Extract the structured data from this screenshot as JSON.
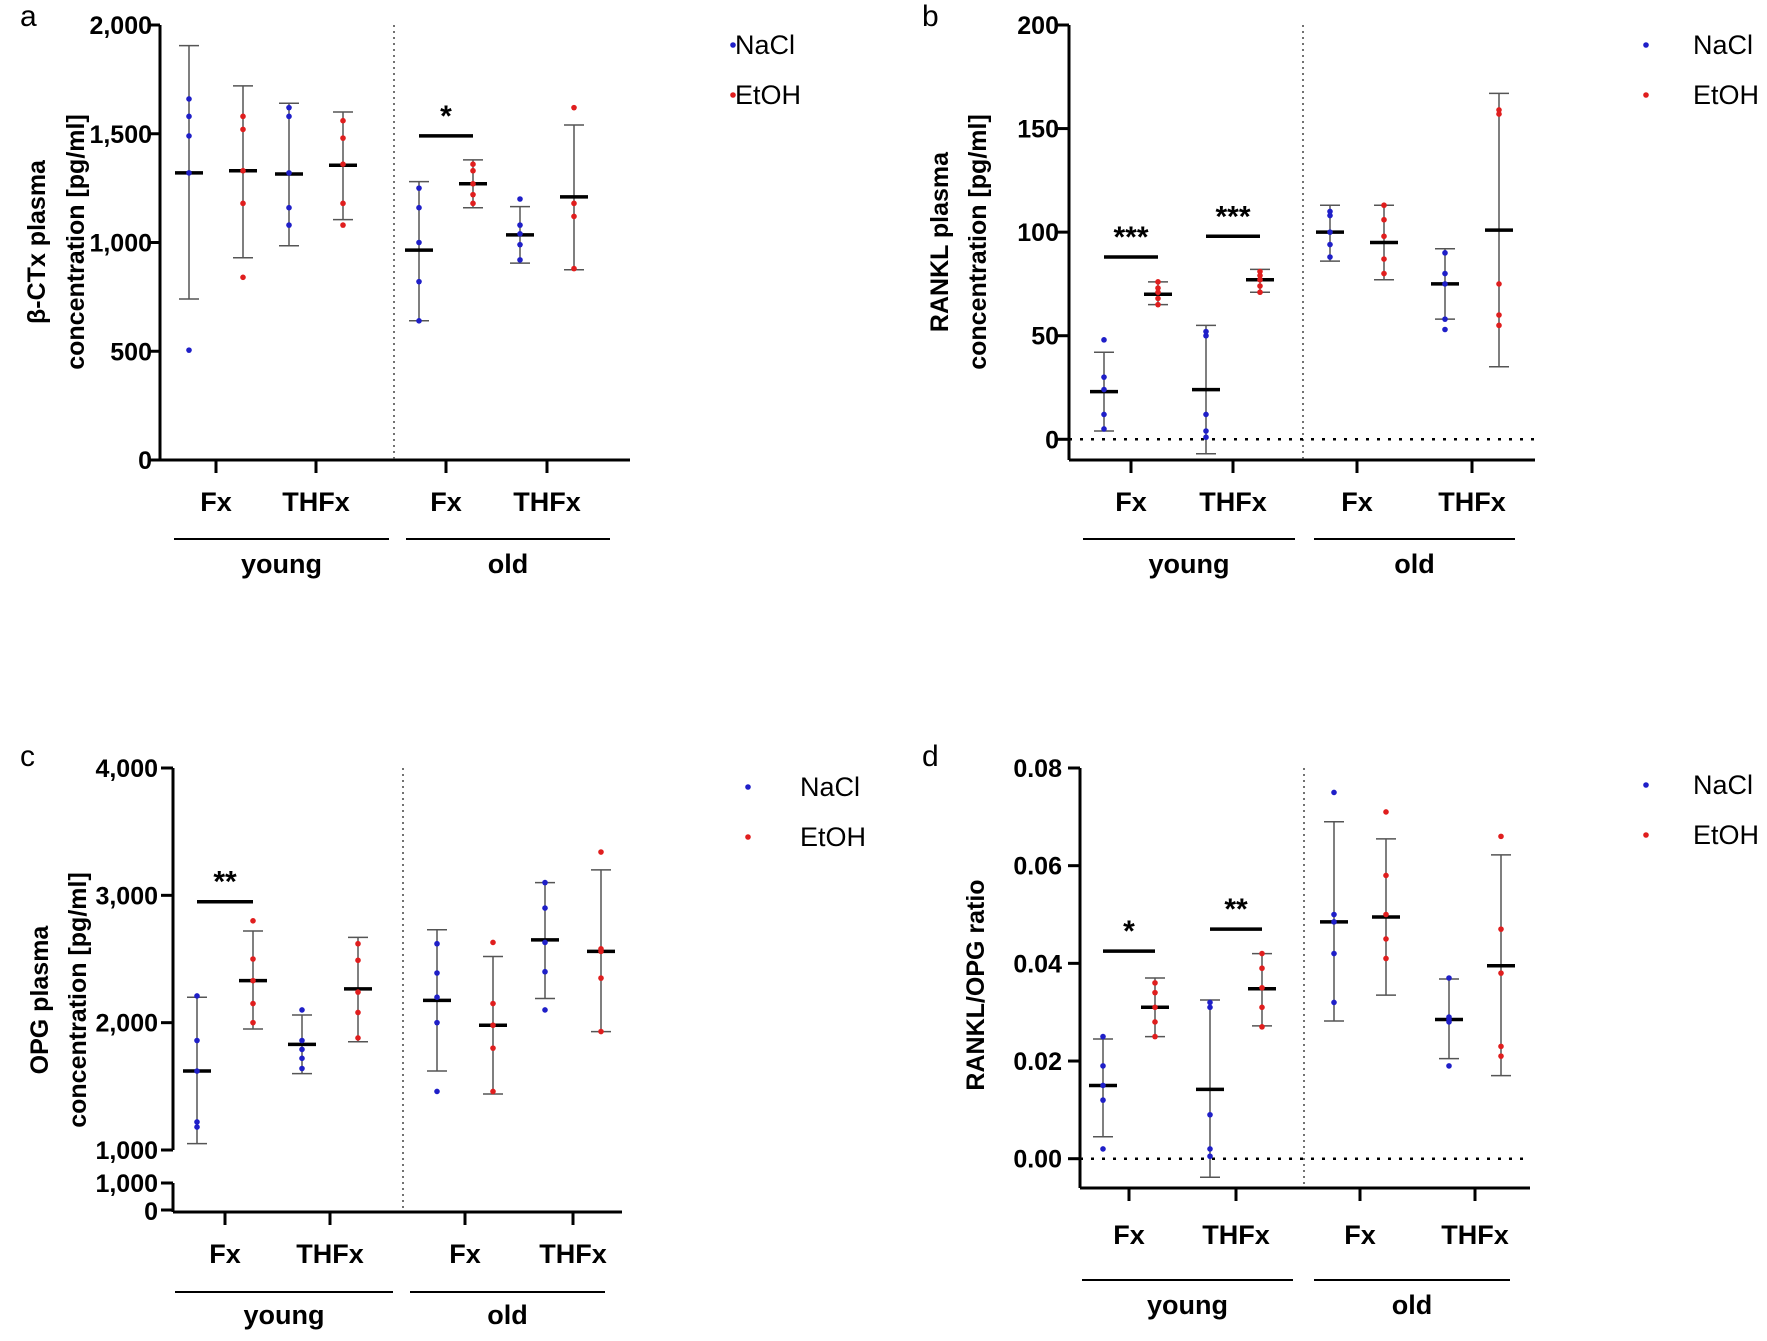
{
  "colors": {
    "nacl": "#1f1fc8",
    "etoh": "#e01e1e",
    "axis": "#000000",
    "errorbar": "#555555"
  },
  "chart_data": [
    {
      "type": "scatter",
      "panel": "a",
      "ylabel_lines": [
        "β-CTx plasma",
        "concentration [pg/ml]"
      ],
      "ylim": [
        0,
        2000
      ],
      "yticks": [
        0,
        500,
        1000,
        1500,
        2000
      ],
      "ytick_labels": [
        "0",
        "500",
        "1,000",
        "1,500",
        "2,000"
      ],
      "zero_line": false,
      "axis_break": false,
      "categories": [
        "Fx",
        "THFx",
        "Fx",
        "THFx"
      ],
      "groups": [
        {
          "label": "young",
          "categories": [
            0,
            1
          ]
        },
        {
          "label": "old",
          "categories": [
            2,
            3
          ]
        }
      ],
      "legend": [
        "NaCl",
        "EtOH"
      ],
      "series": [
        {
          "name": "NaCl",
          "groups": [
            {
              "mean": 1320,
              "low": 740,
              "high": 1905,
              "points": [
                505,
                1320,
                1490,
                1580,
                1660
              ]
            },
            {
              "mean": 1315,
              "low": 985,
              "high": 1640,
              "points": [
                1080,
                1160,
                1320,
                1580,
                1620
              ]
            },
            {
              "mean": 965,
              "low": 640,
              "high": 1280,
              "points": [
                640,
                820,
                1000,
                1160,
                1250
              ]
            },
            {
              "mean": 1035,
              "low": 905,
              "high": 1165,
              "points": [
                920,
                990,
                1040,
                1080,
                1200
              ]
            }
          ]
        },
        {
          "name": "EtOH",
          "groups": [
            {
              "mean": 1330,
              "low": 930,
              "high": 1720,
              "points": [
                840,
                1180,
                1330,
                1520,
                1580
              ]
            },
            {
              "mean": 1355,
              "low": 1105,
              "high": 1600,
              "points": [
                1080,
                1180,
                1360,
                1480,
                1560
              ]
            },
            {
              "mean": 1270,
              "low": 1160,
              "high": 1380,
              "points": [
                1180,
                1220,
                1270,
                1330,
                1360
              ]
            },
            {
              "mean": 1210,
              "low": 875,
              "high": 1540,
              "points": [
                880,
                1120,
                1180,
                1620
              ]
            }
          ]
        }
      ],
      "significance": [
        {
          "category": 2,
          "label": "*",
          "y": 1490
        }
      ]
    },
    {
      "type": "scatter",
      "panel": "b",
      "ylabel_lines": [
        "RANKL plasma",
        "concentration [pg/ml]"
      ],
      "ylim": [
        -10,
        200
      ],
      "yticks": [
        0,
        50,
        100,
        150,
        200
      ],
      "ytick_labels": [
        "0",
        "50",
        "100",
        "150",
        "200"
      ],
      "zero_line": true,
      "axis_break": false,
      "categories": [
        "Fx",
        "THFx",
        "Fx",
        "THFx"
      ],
      "groups": [
        {
          "label": "young",
          "categories": [
            0,
            1
          ]
        },
        {
          "label": "old",
          "categories": [
            2,
            3
          ]
        }
      ],
      "legend": [
        "NaCl",
        "EtOH"
      ],
      "series": [
        {
          "name": "NaCl",
          "groups": [
            {
              "mean": 23,
              "low": 4,
              "high": 42,
              "points": [
                5,
                12,
                24,
                30,
                48
              ]
            },
            {
              "mean": 24,
              "low": -7,
              "high": 55,
              "points": [
                1,
                4,
                12,
                50,
                52
              ]
            },
            {
              "mean": 100,
              "low": 86,
              "high": 113,
              "points": [
                88,
                94,
                100,
                108,
                110
              ]
            },
            {
              "mean": 75,
              "low": 58,
              "high": 92,
              "points": [
                53,
                58,
                75,
                80,
                90
              ]
            }
          ]
        },
        {
          "name": "EtOH",
          "groups": [
            {
              "mean": 70,
              "low": 65,
              "high": 76,
              "points": [
                65,
                68,
                71,
                73,
                76
              ]
            },
            {
              "mean": 77,
              "low": 71,
              "high": 82,
              "points": [
                71,
                74,
                77,
                79,
                81
              ]
            },
            {
              "mean": 95,
              "low": 77,
              "high": 113,
              "points": [
                80,
                87,
                98,
                106,
                113
              ]
            },
            {
              "mean": 101,
              "low": 35,
              "high": 167,
              "points": [
                55,
                60,
                75,
                157,
                159
              ]
            }
          ]
        }
      ],
      "significance": [
        {
          "category": 0,
          "label": "***",
          "y": 88
        },
        {
          "category": 1,
          "label": "***",
          "y": 98
        }
      ]
    },
    {
      "type": "scatter",
      "panel": "c",
      "ylabel_lines": [
        "OPG plasma",
        "concentration [pg/ml]"
      ],
      "ylim": [
        1000,
        4000
      ],
      "yticks": [
        1000,
        2000,
        3000,
        4000
      ],
      "ytick_labels": [
        "1,000",
        "2,000",
        "3,000",
        "4,000"
      ],
      "zero_line": false,
      "axis_break": true,
      "break_labels": [
        "1,000",
        "0"
      ],
      "categories": [
        "Fx",
        "THFx",
        "Fx",
        "THFx"
      ],
      "groups": [
        {
          "label": "young",
          "categories": [
            0,
            1
          ]
        },
        {
          "label": "old",
          "categories": [
            2,
            3
          ]
        }
      ],
      "legend": [
        "NaCl",
        "EtOH"
      ],
      "series": [
        {
          "name": "NaCl",
          "groups": [
            {
              "mean": 1620,
              "low": 1050,
              "high": 2200,
              "points": [
                1180,
                1220,
                1620,
                1860,
                2210
              ]
            },
            {
              "mean": 1830,
              "low": 1600,
              "high": 2060,
              "points": [
                1640,
                1720,
                1790,
                1860,
                2100
              ]
            },
            {
              "mean": 2175,
              "low": 1620,
              "high": 2730,
              "points": [
                1460,
                2000,
                2200,
                2390,
                2620
              ]
            },
            {
              "mean": 2650,
              "low": 2190,
              "high": 3100,
              "points": [
                2100,
                2400,
                2630,
                2900,
                3100
              ]
            }
          ]
        },
        {
          "name": "EtOH",
          "groups": [
            {
              "mean": 2330,
              "low": 1950,
              "high": 2720,
              "points": [
                2000,
                2150,
                2330,
                2500,
                2800
              ]
            },
            {
              "mean": 2265,
              "low": 1850,
              "high": 2670,
              "points": [
                1880,
                2080,
                2240,
                2490,
                2620
              ]
            },
            {
              "mean": 1980,
              "low": 1440,
              "high": 2520,
              "points": [
                1460,
                1800,
                1980,
                2150,
                2630
              ]
            },
            {
              "mean": 2560,
              "low": 1930,
              "high": 3200,
              "points": [
                1930,
                2350,
                2560,
                2580,
                3340
              ]
            }
          ]
        }
      ],
      "significance": [
        {
          "category": 0,
          "label": "**",
          "y": 2950
        }
      ]
    },
    {
      "type": "scatter",
      "panel": "d",
      "ylabel_lines": [
        "RANKL/OPG ratio"
      ],
      "ylim": [
        -0.006,
        0.08
      ],
      "yticks": [
        0.0,
        0.02,
        0.04,
        0.06,
        0.08
      ],
      "ytick_labels": [
        "0.00",
        "0.02",
        "0.04",
        "0.06",
        "0.08"
      ],
      "zero_line": true,
      "axis_break": false,
      "categories": [
        "Fx",
        "THFx",
        "Fx",
        "THFx"
      ],
      "groups": [
        {
          "label": "young",
          "categories": [
            0,
            1
          ]
        },
        {
          "label": "old",
          "categories": [
            2,
            3
          ]
        }
      ],
      "legend": [
        "NaCl",
        "EtOH"
      ],
      "series": [
        {
          "name": "NaCl",
          "groups": [
            {
              "mean": 0.015,
              "low": 0.0045,
              "high": 0.0245,
              "points": [
                0.002,
                0.012,
                0.015,
                0.019,
                0.025
              ]
            },
            {
              "mean": 0.0142,
              "low": -0.0038,
              "high": 0.0325,
              "points": [
                0.0005,
                0.002,
                0.009,
                0.031,
                0.032
              ]
            },
            {
              "mean": 0.0485,
              "low": 0.0282,
              "high": 0.069,
              "points": [
                0.032,
                0.042,
                0.0485,
                0.05,
                0.075
              ]
            },
            {
              "mean": 0.0285,
              "low": 0.0205,
              "high": 0.0368,
              "points": [
                0.019,
                0.028,
                0.0285,
                0.029,
                0.037
              ]
            }
          ]
        },
        {
          "name": "EtOH",
          "groups": [
            {
              "mean": 0.031,
              "low": 0.025,
              "high": 0.037,
              "points": [
                0.025,
                0.028,
                0.031,
                0.034,
                0.036
              ]
            },
            {
              "mean": 0.0348,
              "low": 0.0272,
              "high": 0.042,
              "points": [
                0.027,
                0.031,
                0.035,
                0.039,
                0.042
              ]
            },
            {
              "mean": 0.0495,
              "low": 0.0335,
              "high": 0.0655,
              "points": [
                0.041,
                0.045,
                0.05,
                0.058,
                0.071
              ]
            },
            {
              "mean": 0.0395,
              "low": 0.017,
              "high": 0.0622,
              "points": [
                0.021,
                0.023,
                0.038,
                0.047,
                0.066
              ]
            }
          ]
        }
      ],
      "significance": [
        {
          "category": 0,
          "label": "*",
          "y": 0.0425
        },
        {
          "category": 1,
          "label": "**",
          "y": 0.047
        }
      ]
    }
  ]
}
